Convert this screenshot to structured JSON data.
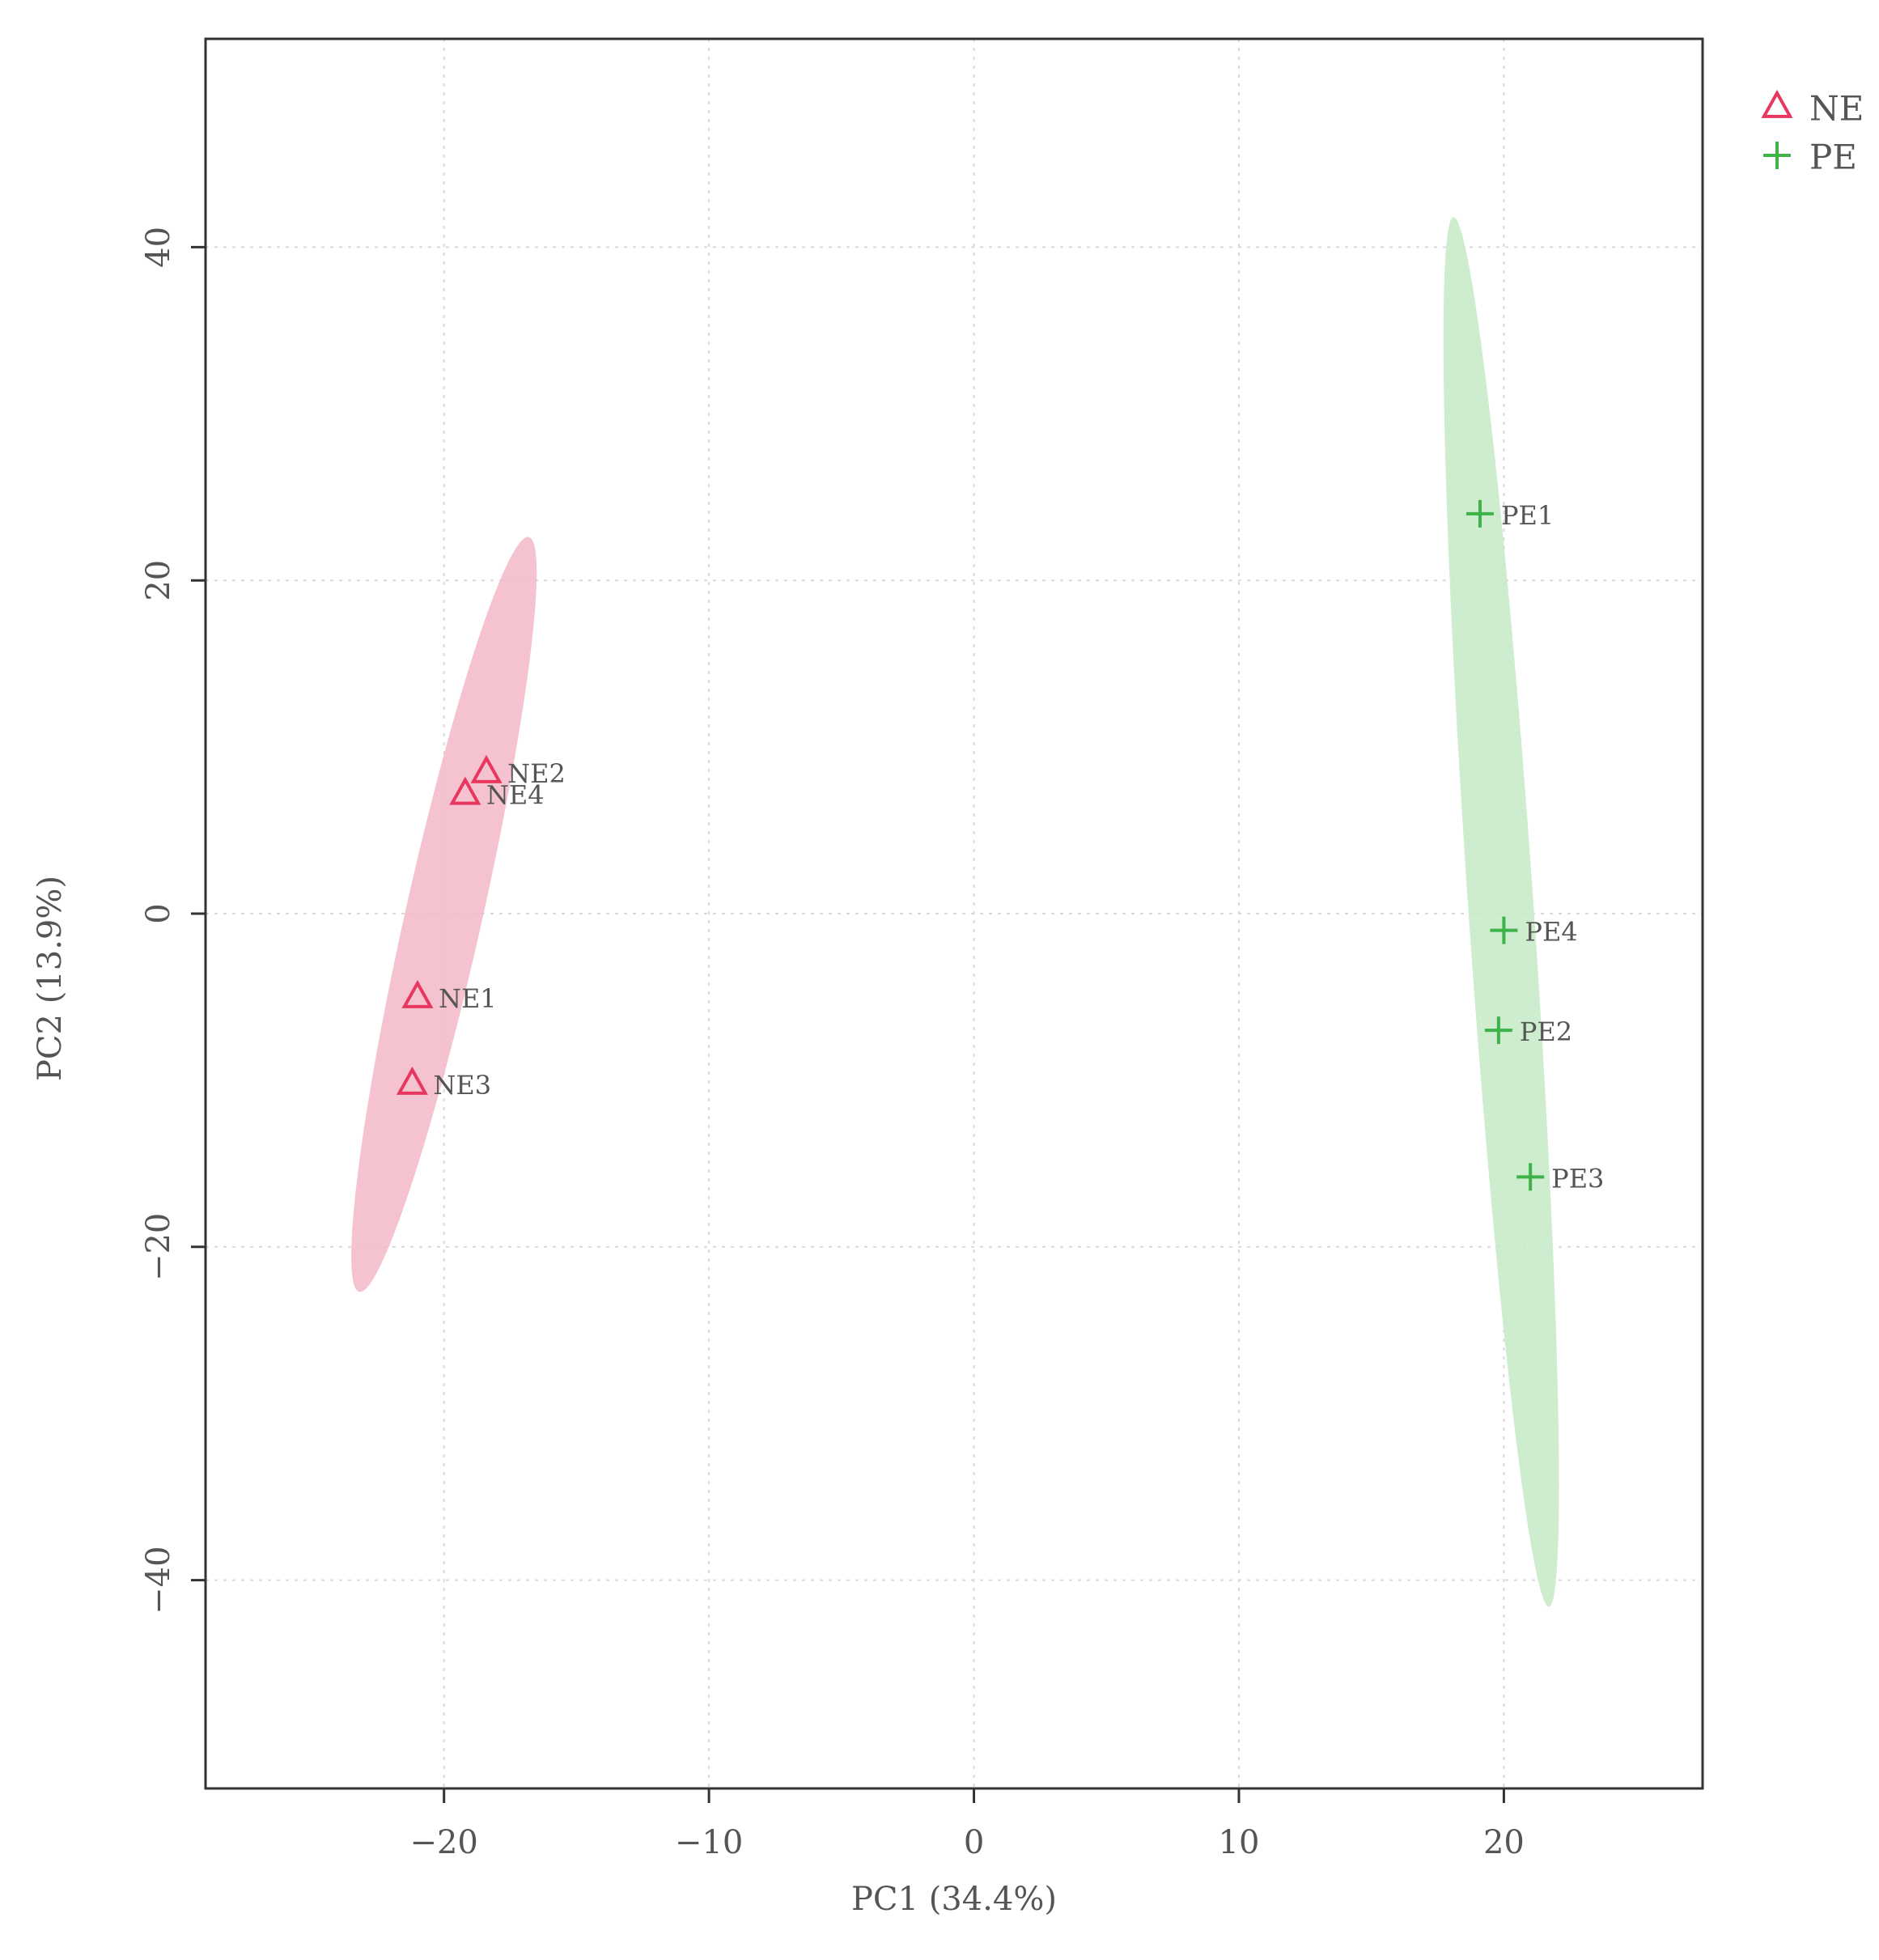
{
  "chart_data": {
    "type": "scatter",
    "title": "",
    "xlabel": "PC1 (34.4%)",
    "ylabel": "PC2 (13.9%)",
    "xlim": [
      -29,
      27.5
    ],
    "ylim": [
      -52.5,
      52.5
    ],
    "xticks": [
      -20,
      -10,
      0,
      10,
      20
    ],
    "yticks": [
      -40,
      -20,
      0,
      20,
      40
    ],
    "xtick_labels": [
      "−20",
      "−10",
      "0",
      "10",
      "20"
    ],
    "ytick_labels": [
      "−40",
      "−20",
      "0",
      "20",
      "40"
    ],
    "grid": true,
    "legend": "top-right",
    "series": [
      {
        "name": "NE",
        "marker": "triangle",
        "color": "#e8375e",
        "ellipse_color": "#f3b9c7",
        "points": [
          {
            "label": "NE1",
            "x": -21.0,
            "y": -5.0
          },
          {
            "label": "NE2",
            "x": -18.4,
            "y": 8.5
          },
          {
            "label": "NE3",
            "x": -21.2,
            "y": -10.2
          },
          {
            "label": "NE4",
            "x": -19.2,
            "y": 7.2
          }
        ],
        "ellipse": {
          "x1": -23.2,
          "y1": -22.7,
          "x2": -16.8,
          "y2": 22.6,
          "half_width": 1.0
        }
      },
      {
        "name": "PE",
        "marker": "plus",
        "color": "#3db34a",
        "ellipse_color": "#c6e9c6",
        "points": [
          {
            "label": "PE1",
            "x": 19.1,
            "y": 24.0
          },
          {
            "label": "PE2",
            "x": 19.8,
            "y": -7.0
          },
          {
            "label": "PE3",
            "x": 21.0,
            "y": -15.8
          },
          {
            "label": "PE4",
            "x": 20.0,
            "y": -1.0
          }
        ],
        "ellipse": {
          "x1": 18.1,
          "y1": 41.8,
          "x2": 21.7,
          "y2": -41.6,
          "half_width": 0.85
        }
      }
    ]
  }
}
